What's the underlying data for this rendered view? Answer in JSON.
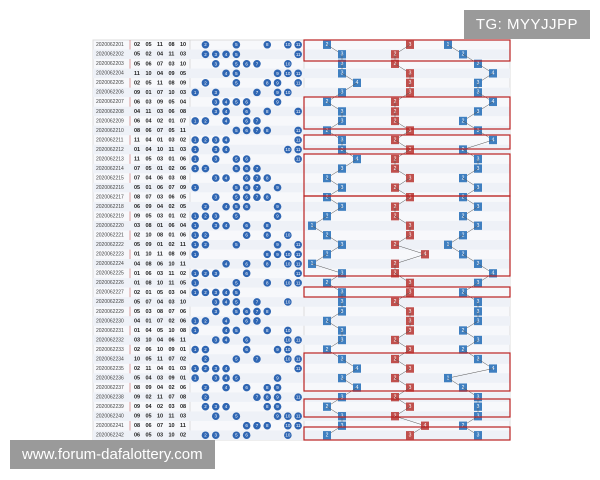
{
  "watermark_top": "TG: MYYJJPP",
  "watermark_bottom": "www.forum-dafalottery.com",
  "table": {
    "rows": [
      {
        "issue": "2020062201",
        "draw": [
          {
            "value": 2,
            "label": "02"
          },
          {
            "value": 5,
            "label": "05"
          },
          11,
          {
            "value": 8,
            "label": "08"
          },
          10
        ],
        "trend": [
          2,
          3,
          1
        ]
      },
      {
        "issue": "2020062202",
        "draw": [
          {
            "value": 5,
            "label": "05"
          },
          {
            "value": 2,
            "label": "02"
          },
          {
            "value": 4,
            "label": "04"
          },
          11,
          {
            "value": 3,
            "label": "03"
          }
        ],
        "trend": [
          3,
          2,
          2
        ]
      },
      {
        "issue": "2020062203",
        "draw": [
          {
            "value": 5,
            "label": "05"
          },
          {
            "value": 6,
            "label": "06"
          },
          {
            "value": 7,
            "label": "07"
          },
          {
            "value": 3,
            "label": "03"
          },
          10
        ],
        "trend": [
          3,
          2,
          3
        ]
      },
      {
        "issue": "2020062204",
        "draw": [
          11,
          10,
          {
            "value": 4,
            "label": "04"
          },
          {
            "value": 9,
            "label": "09"
          },
          {
            "value": 5,
            "label": "05"
          }
        ],
        "trend": [
          3,
          3,
          4
        ]
      },
      {
        "issue": "2020062205",
        "draw": [
          {
            "value": 2,
            "label": "02"
          },
          {
            "value": 5,
            "label": "05"
          },
          11,
          {
            "value": 8,
            "label": "08"
          },
          {
            "value": 9,
            "label": "09"
          }
        ],
        "trend": [
          4,
          3,
          3
        ]
      },
      {
        "issue": "2020062206",
        "draw": [
          {
            "value": 9,
            "label": "09"
          },
          {
            "value": 1,
            "label": "01"
          },
          {
            "value": 7,
            "label": "07"
          },
          10,
          {
            "value": 3,
            "label": "03"
          }
        ],
        "trend": [
          3,
          3,
          3
        ]
      },
      {
        "issue": "2020062207",
        "draw": [
          {
            "value": 6,
            "label": "06"
          },
          {
            "value": 3,
            "label": "03"
          },
          {
            "value": 9,
            "label": "09"
          },
          {
            "value": 5,
            "label": "05"
          },
          {
            "value": 4,
            "label": "04"
          }
        ],
        "trend": [
          2,
          2,
          4
        ]
      },
      {
        "issue": "2020062208",
        "draw": [
          {
            "value": 4,
            "label": "04"
          },
          11,
          {
            "value": 3,
            "label": "03"
          },
          {
            "value": 6,
            "label": "06"
          },
          {
            "value": 8,
            "label": "08"
          }
        ],
        "trend": [
          3,
          2,
          3
        ]
      },
      {
        "issue": "2020062209",
        "draw": [
          {
            "value": 6,
            "label": "06"
          },
          {
            "value": 4,
            "label": "04"
          },
          {
            "value": 2,
            "label": "02"
          },
          {
            "value": 1,
            "label": "01"
          },
          {
            "value": 7,
            "label": "07"
          }
        ],
        "trend": [
          3,
          2,
          2
        ]
      },
      {
        "issue": "2020062210",
        "draw": [
          {
            "value": 8,
            "label": "08"
          },
          {
            "value": 6,
            "label": "06"
          },
          {
            "value": 7,
            "label": "07"
          },
          {
            "value": 5,
            "label": "05"
          },
          11
        ],
        "trend": [
          2,
          3,
          3
        ]
      },
      {
        "issue": "2020062211",
        "draw": [
          11,
          {
            "value": 4,
            "label": "04"
          },
          {
            "value": 1,
            "label": "01"
          },
          {
            "value": 3,
            "label": "03"
          },
          {
            "value": 2,
            "label": "02"
          }
        ],
        "trend": [
          3,
          2,
          4
        ]
      },
      {
        "issue": "2020062212",
        "draw": [
          {
            "value": 1,
            "label": "01"
          },
          {
            "value": 4,
            "label": "04"
          },
          10,
          11,
          {
            "value": 3,
            "label": "03"
          }
        ],
        "trend": [
          3,
          3,
          2
        ]
      },
      {
        "issue": "2020062213",
        "draw": [
          11,
          {
            "value": 5,
            "label": "05"
          },
          {
            "value": 3,
            "label": "03"
          },
          {
            "value": 1,
            "label": "01"
          },
          {
            "value": 6,
            "label": "06"
          }
        ],
        "trend": [
          4,
          2,
          3
        ]
      },
      {
        "issue": "2020062214",
        "draw": [
          {
            "value": 7,
            "label": "07"
          },
          {
            "value": 5,
            "label": "05"
          },
          {
            "value": 1,
            "label": "01"
          },
          {
            "value": 2,
            "label": "02"
          },
          {
            "value": 6,
            "label": "06"
          }
        ],
        "trend": [
          3,
          2,
          3
        ]
      },
      {
        "issue": "2020062215",
        "draw": [
          {
            "value": 7,
            "label": "07"
          },
          {
            "value": 4,
            "label": "04"
          },
          {
            "value": 6,
            "label": "06"
          },
          {
            "value": 3,
            "label": "03"
          },
          {
            "value": 8,
            "label": "08"
          }
        ],
        "trend": [
          2,
          3,
          2
        ]
      },
      {
        "issue": "2020062216",
        "draw": [
          {
            "value": 5,
            "label": "05"
          },
          {
            "value": 1,
            "label": "01"
          },
          {
            "value": 6,
            "label": "06"
          },
          {
            "value": 7,
            "label": "07"
          },
          {
            "value": 9,
            "label": "09"
          }
        ],
        "trend": [
          3,
          2,
          3
        ]
      },
      {
        "issue": "2020062217",
        "draw": [
          {
            "value": 8,
            "label": "08"
          },
          {
            "value": 7,
            "label": "07"
          },
          {
            "value": 3,
            "label": "03"
          },
          {
            "value": 6,
            "label": "06"
          },
          {
            "value": 5,
            "label": "05"
          }
        ],
        "trend": [
          2,
          3,
          2
        ]
      },
      {
        "issue": "2020062218",
        "draw": [
          {
            "value": 6,
            "label": "06"
          },
          {
            "value": 9,
            "label": "09"
          },
          {
            "value": 4,
            "label": "04"
          },
          {
            "value": 2,
            "label": "02"
          },
          {
            "value": 5,
            "label": "05"
          }
        ],
        "trend": [
          3,
          2,
          3
        ]
      },
      {
        "issue": "2020062219",
        "draw": [
          {
            "value": 9,
            "label": "09"
          },
          {
            "value": 5,
            "label": "05"
          },
          {
            "value": 3,
            "label": "03"
          },
          {
            "value": 1,
            "label": "01"
          },
          {
            "value": 2,
            "label": "02"
          }
        ],
        "trend": [
          2,
          2,
          2
        ]
      },
      {
        "issue": "2020062220",
        "draw": [
          {
            "value": 3,
            "label": "03"
          },
          {
            "value": 8,
            "label": "08"
          },
          {
            "value": 1,
            "label": "01"
          },
          {
            "value": 6,
            "label": "06"
          },
          {
            "value": 4,
            "label": "04"
          }
        ],
        "trend": [
          1,
          3,
          3
        ]
      },
      {
        "issue": "2020062221",
        "draw": [
          {
            "value": 2,
            "label": "02"
          },
          10,
          {
            "value": 8,
            "label": "08"
          },
          {
            "value": 1,
            "label": "01"
          },
          {
            "value": 6,
            "label": "06"
          }
        ],
        "trend": [
          2,
          3,
          2
        ]
      },
      {
        "issue": "2020062222",
        "draw": [
          {
            "value": 5,
            "label": "05"
          },
          {
            "value": 9,
            "label": "09"
          },
          {
            "value": 1,
            "label": "01"
          },
          {
            "value": 2,
            "label": "02"
          },
          11
        ],
        "trend": [
          3,
          2,
          1
        ]
      },
      {
        "issue": "2020062223",
        "draw": [
          {
            "value": 1,
            "label": "01"
          },
          10,
          11,
          {
            "value": 8,
            "label": "08"
          },
          {
            "value": 9,
            "label": "09"
          }
        ],
        "trend": [
          2,
          4,
          2
        ]
      },
      {
        "issue": "2020062224",
        "draw": [
          {
            "value": 4,
            "label": "04"
          },
          {
            "value": 8,
            "label": "08"
          },
          {
            "value": 6,
            "label": "06"
          },
          10,
          11
        ],
        "trend": [
          1,
          2,
          3
        ]
      },
      {
        "issue": "2020062225",
        "draw": [
          {
            "value": 1,
            "label": "01"
          },
          {
            "value": 6,
            "label": "06"
          },
          {
            "value": 3,
            "label": "03"
          },
          11,
          {
            "value": 2,
            "label": "02"
          }
        ],
        "trend": [
          3,
          2,
          4
        ]
      },
      {
        "issue": "2020062226",
        "draw": [
          {
            "value": 1,
            "label": "01"
          },
          {
            "value": 8,
            "label": "08"
          },
          10,
          11,
          {
            "value": 5,
            "label": "05"
          }
        ],
        "trend": [
          2,
          3,
          3
        ]
      },
      {
        "issue": "2020062227",
        "draw": [
          {
            "value": 2,
            "label": "02"
          },
          {
            "value": 1,
            "label": "01"
          },
          {
            "value": 5,
            "label": "05"
          },
          {
            "value": 3,
            "label": "03"
          },
          {
            "value": 4,
            "label": "04"
          }
        ],
        "trend": [
          3,
          3,
          2
        ]
      },
      {
        "issue": "2020062228",
        "draw": [
          {
            "value": 5,
            "label": "05"
          },
          {
            "value": 7,
            "label": "07"
          },
          {
            "value": 4,
            "label": "04"
          },
          {
            "value": 3,
            "label": "03"
          },
          10
        ],
        "trend": [
          3,
          2,
          3
        ]
      },
      {
        "issue": "2020062229",
        "draw": [
          {
            "value": 5,
            "label": "05"
          },
          {
            "value": 3,
            "label": "03"
          },
          {
            "value": 8,
            "label": "08"
          },
          {
            "value": 7,
            "label": "07"
          },
          {
            "value": 6,
            "label": "06"
          }
        ],
        "trend": [
          3,
          3,
          3
        ]
      },
      {
        "issue": "2020062230",
        "draw": [
          {
            "value": 4,
            "label": "04"
          },
          {
            "value": 1,
            "label": "01"
          },
          {
            "value": 7,
            "label": "07"
          },
          {
            "value": 2,
            "label": "02"
          },
          {
            "value": 6,
            "label": "06"
          }
        ],
        "trend": [
          2,
          3,
          3
        ]
      },
      {
        "issue": "2020062231",
        "draw": [
          {
            "value": 1,
            "label": "01"
          },
          {
            "value": 4,
            "label": "04"
          },
          {
            "value": 5,
            "label": "05"
          },
          10,
          {
            "value": 8,
            "label": "08"
          }
        ],
        "trend": [
          3,
          3,
          2
        ]
      },
      {
        "issue": "2020062232",
        "draw": [
          {
            "value": 3,
            "label": "03"
          },
          10,
          {
            "value": 4,
            "label": "04"
          },
          {
            "value": 6,
            "label": "06"
          },
          11
        ],
        "trend": [
          3,
          2,
          3
        ]
      },
      {
        "issue": "2020062233",
        "draw": [
          {
            "value": 2,
            "label": "02"
          },
          {
            "value": 6,
            "label": "06"
          },
          10,
          {
            "value": 9,
            "label": "09"
          },
          {
            "value": 1,
            "label": "01"
          }
        ],
        "trend": [
          2,
          3,
          2
        ]
      },
      {
        "issue": "2020062234",
        "draw": [
          10,
          {
            "value": 5,
            "label": "05"
          },
          11,
          {
            "value": 7,
            "label": "07"
          },
          {
            "value": 2,
            "label": "02"
          }
        ],
        "trend": [
          3,
          2,
          3
        ]
      },
      {
        "issue": "2020062235",
        "draw": [
          {
            "value": 2,
            "label": "02"
          },
          11,
          {
            "value": 4,
            "label": "04"
          },
          {
            "value": 1,
            "label": "01"
          },
          {
            "value": 3,
            "label": "03"
          }
        ],
        "trend": [
          4,
          3,
          4
        ]
      },
      {
        "issue": "2020062236",
        "draw": [
          {
            "value": 5,
            "label": "05"
          },
          {
            "value": 4,
            "label": "04"
          },
          {
            "value": 3,
            "label": "03"
          },
          {
            "value": 9,
            "label": "09"
          },
          {
            "value": 1,
            "label": "01"
          }
        ],
        "trend": [
          3,
          2,
          1
        ]
      },
      {
        "issue": "2020062237",
        "draw": [
          {
            "value": 8,
            "label": "08"
          },
          {
            "value": 9,
            "label": "09"
          },
          {
            "value": 4,
            "label": "04"
          },
          {
            "value": 2,
            "label": "02"
          },
          {
            "value": 6,
            "label": "06"
          }
        ],
        "trend": [
          4,
          3,
          2
        ]
      },
      {
        "issue": "2020062238",
        "draw": [
          {
            "value": 9,
            "label": "09"
          },
          {
            "value": 2,
            "label": "02"
          },
          11,
          {
            "value": 7,
            "label": "07"
          },
          {
            "value": 8,
            "label": "08"
          }
        ],
        "trend": [
          3,
          2,
          3
        ]
      },
      {
        "issue": "2020062239",
        "draw": [
          {
            "value": 9,
            "label": "09"
          },
          {
            "value": 4,
            "label": "04"
          },
          {
            "value": 2,
            "label": "02"
          },
          {
            "value": 3,
            "label": "03"
          },
          {
            "value": 8,
            "label": "08"
          }
        ],
        "trend": [
          2,
          3,
          3
        ]
      },
      {
        "issue": "2020062240",
        "draw": [
          {
            "value": 9,
            "label": "09"
          },
          {
            "value": 5,
            "label": "05"
          },
          10,
          11,
          {
            "value": 3,
            "label": "03"
          }
        ],
        "trend": [
          3,
          2,
          3
        ]
      },
      {
        "issue": "2020062241",
        "draw": [
          {
            "value": 8,
            "label": "08"
          },
          {
            "value": 6,
            "label": "06"
          },
          {
            "value": 7,
            "label": "07"
          },
          10,
          11
        ],
        "trend": [
          3,
          4,
          2
        ]
      },
      {
        "issue": "2020062242",
        "draw": [
          {
            "value": 6,
            "label": "06"
          },
          {
            "value": 5,
            "label": "05"
          },
          {
            "value": 3,
            "label": "03"
          },
          10,
          {
            "value": 2,
            "label": "02"
          }
        ],
        "trend": [
          2,
          3,
          3
        ]
      }
    ]
  }
}
